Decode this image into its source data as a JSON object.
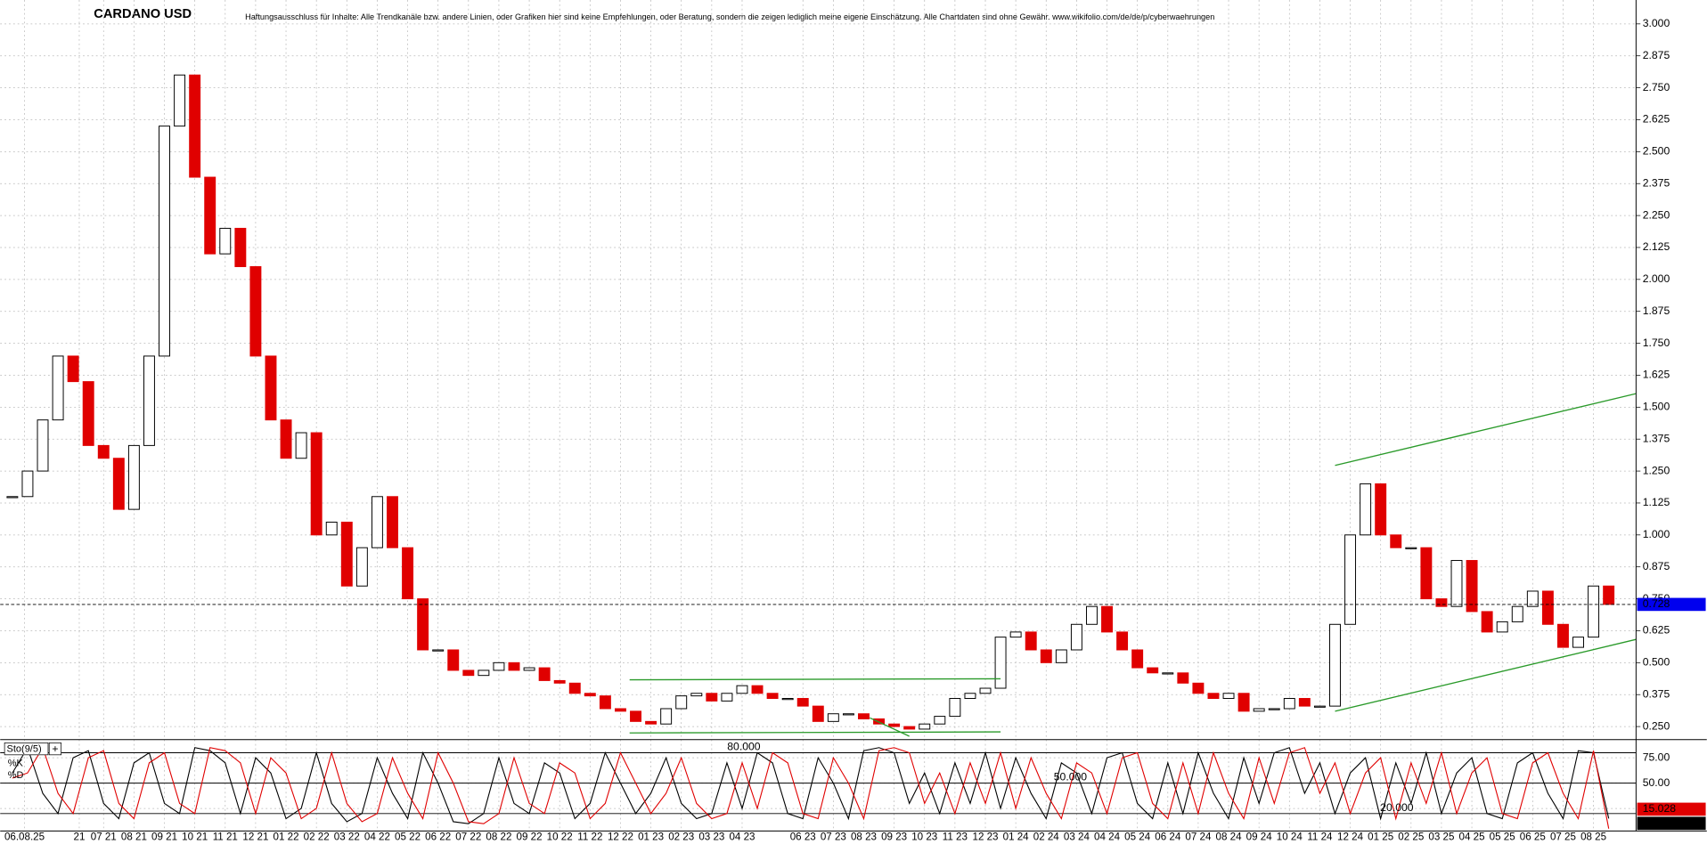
{
  "chart_data": [
    {
      "type": "candlestick",
      "title": "CARDANO USD",
      "subtitle": "Haftungsausschluss für Inhalte: Alle Trendkanäle bzw. andere Linien, oder Grafiken hier sind keine Empfehlungen, oder Beratung, sondern die zeigen lediglich meine eigene Einschätzung. Alle Chartdaten sind ohne Gewähr. www.wikifolio.com/de/de/p/cyberwaehrungen",
      "x": [
        -3,
        -2.5,
        -2,
        -1.5,
        -1,
        -0.5,
        0,
        0.5,
        1,
        1.5,
        2,
        2.5,
        3,
        3.5,
        4,
        4.5,
        5,
        5.5,
        6,
        6.5,
        7,
        7.5,
        8,
        8.5,
        9,
        9.5,
        10,
        10.5,
        11,
        11.5,
        12,
        12.5,
        13,
        13.5,
        14,
        14.5,
        15,
        15.5,
        16,
        16.5,
        17,
        17.5,
        18,
        18.5,
        19,
        19.5,
        20,
        20.5,
        21,
        21.5,
        22,
        22.5,
        23,
        23.5,
        24,
        24.5,
        25,
        25.5,
        26,
        26.5,
        27,
        27.5,
        28,
        28.5,
        29,
        29.5,
        30,
        30.5,
        31,
        31.5,
        32,
        32.5,
        33,
        33.5,
        34,
        34.5,
        35,
        35.5,
        36,
        36.5,
        37,
        37.5,
        38,
        38.5,
        39,
        39.5,
        40,
        40.5,
        41,
        41.5,
        42,
        42.5,
        43,
        43.5,
        44,
        44.5,
        45,
        45.5,
        46,
        46.5,
        47,
        47.5,
        48,
        48.5,
        49,
        49.5
      ],
      "values": [
        1.15,
        1.25,
        1.45,
        1.7,
        1.6,
        1.35,
        1.3,
        1.1,
        1.35,
        1.7,
        2.6,
        2.8,
        2.4,
        2.1,
        2.2,
        2.05,
        1.7,
        1.45,
        1.3,
        1.4,
        1.0,
        1.05,
        0.8,
        0.95,
        1.15,
        0.95,
        0.75,
        0.55,
        0.55,
        0.47,
        0.45,
        0.47,
        0.5,
        0.47,
        0.48,
        0.43,
        0.42,
        0.38,
        0.37,
        0.32,
        0.31,
        0.27,
        0.26,
        0.32,
        0.37,
        0.38,
        0.35,
        0.38,
        0.41,
        0.38,
        0.36,
        0.36,
        0.33,
        0.27,
        0.3,
        0.3,
        0.28,
        0.26,
        0.25,
        0.24,
        0.26,
        0.29,
        0.36,
        0.38,
        0.4,
        0.6,
        0.62,
        0.55,
        0.5,
        0.55,
        0.65,
        0.72,
        0.62,
        0.55,
        0.48,
        0.46,
        0.46,
        0.42,
        0.38,
        0.36,
        0.38,
        0.31,
        0.32,
        0.32,
        0.36,
        0.33,
        0.33,
        0.65,
        1.0,
        1.2,
        1.0,
        0.95,
        0.95,
        0.75,
        0.72,
        0.9,
        0.7,
        0.62,
        0.66,
        0.72,
        0.78,
        0.65,
        0.56,
        0.6,
        0.8,
        0.728
      ],
      "up_color": "#000000",
      "down_color": "#e00000",
      "xlim": [
        -3.4,
        50.4
      ],
      "xticks": [
        {
          "value": -2.6,
          "label": "06.08.25"
        },
        {
          "value": -0.8,
          "label": "21"
        },
        {
          "value": 0,
          "label": "07 21"
        },
        {
          "value": 1,
          "label": "08 21"
        },
        {
          "value": 2,
          "label": "09 21"
        },
        {
          "value": 3,
          "label": "10 21"
        },
        {
          "value": 4,
          "label": "11 21"
        },
        {
          "value": 5,
          "label": "12 21"
        },
        {
          "value": 6,
          "label": "01 22"
        },
        {
          "value": 7,
          "label": "02 22"
        },
        {
          "value": 8,
          "label": "03 22"
        },
        {
          "value": 9,
          "label": "04 22"
        },
        {
          "value": 10,
          "label": "05 22"
        },
        {
          "value": 11,
          "label": "06 22"
        },
        {
          "value": 12,
          "label": "07 22"
        },
        {
          "value": 13,
          "label": "08 22"
        },
        {
          "value": 14,
          "label": "09 22"
        },
        {
          "value": 15,
          "label": "10 22"
        },
        {
          "value": 16,
          "label": "11 22"
        },
        {
          "value": 17,
          "label": "12 22"
        },
        {
          "value": 18,
          "label": "01 23"
        },
        {
          "value": 19,
          "label": "02 23"
        },
        {
          "value": 20,
          "label": "03 23"
        },
        {
          "value": 21,
          "label": "04 23"
        },
        {
          "value": 23,
          "label": "06 23"
        },
        {
          "value": 24,
          "label": "07 23"
        },
        {
          "value": 25,
          "label": "08 23"
        },
        {
          "value": 26,
          "label": "09 23"
        },
        {
          "value": 27,
          "label": "10 23"
        },
        {
          "value": 28,
          "label": "11 23"
        },
        {
          "value": 29,
          "label": "12 23"
        },
        {
          "value": 30,
          "label": "01 24"
        },
        {
          "value": 31,
          "label": "02 24"
        },
        {
          "value": 32,
          "label": "03 24"
        },
        {
          "value": 33,
          "label": "04 24"
        },
        {
          "value": 34,
          "label": "05 24"
        },
        {
          "value": 35,
          "label": "06 24"
        },
        {
          "value": 36,
          "label": "07 24"
        },
        {
          "value": 37,
          "label": "08 24"
        },
        {
          "value": 38,
          "label": "09 24"
        },
        {
          "value": 39,
          "label": "10 24"
        },
        {
          "value": 40,
          "label": "11 24"
        },
        {
          "value": 41,
          "label": "12 24"
        },
        {
          "value": 42,
          "label": "01 25"
        },
        {
          "value": 43,
          "label": "02 25"
        },
        {
          "value": 44,
          "label": "03 25"
        },
        {
          "value": 45,
          "label": "04 25"
        },
        {
          "value": 46,
          "label": "05 25"
        },
        {
          "value": 47,
          "label": "06 25"
        },
        {
          "value": 48,
          "label": "07 25"
        },
        {
          "value": 49,
          "label": "08 25"
        }
      ],
      "ylim": [
        0.216,
        3.085
      ],
      "yticks": [
        {
          "value": 0.25,
          "label": "0.250"
        },
        {
          "value": 0.375,
          "label": "0.375"
        },
        {
          "value": 0.5,
          "label": "0.500"
        },
        {
          "value": 0.625,
          "label": "0.625"
        },
        {
          "value": 0.75,
          "label": "0.750"
        },
        {
          "value": 0.875,
          "label": "0.875"
        },
        {
          "value": 1.0,
          "label": "1.000"
        },
        {
          "value": 1.125,
          "label": "1.125"
        },
        {
          "value": 1.25,
          "label": "1.250"
        },
        {
          "value": 1.375,
          "label": "1.375"
        },
        {
          "value": 1.5,
          "label": "1.500"
        },
        {
          "value": 1.625,
          "label": "1.625"
        },
        {
          "value": 1.75,
          "label": "1.750"
        },
        {
          "value": 1.875,
          "label": "1.875"
        },
        {
          "value": 2.0,
          "label": "2.000"
        },
        {
          "value": 2.125,
          "label": "2.125"
        },
        {
          "value": 2.25,
          "label": "2.250"
        },
        {
          "value": 2.375,
          "label": "2.375"
        },
        {
          "value": 2.5,
          "label": "2.500"
        },
        {
          "value": 2.625,
          "label": "2.625"
        },
        {
          "value": 2.75,
          "label": "2.750"
        },
        {
          "value": 2.875,
          "label": "2.875"
        },
        {
          "value": 3.0,
          "label": "3.000"
        }
      ],
      "grid": true,
      "last_price_color": "#0000ee",
      "trendline_color": "#2a9a2a",
      "trendlines": [
        {
          "x": [
            40.5,
            50.4
          ],
          "y": [
            1.272,
            1.553
          ]
        },
        {
          "x": [
            40.5,
            50.4
          ],
          "y": [
            0.31,
            0.591
          ]
        },
        {
          "x": [
            17.3,
            29.5
          ],
          "y": [
            0.433,
            0.437
          ]
        },
        {
          "x": [
            17.3,
            29.5
          ],
          "y": [
            0.225,
            0.229
          ]
        },
        {
          "x": [
            25.2,
            26.5
          ],
          "y": [
            0.284,
            0.212
          ]
        }
      ]
    },
    {
      "type": "line",
      "title": "Sto(9/5)",
      "x": [
        -3,
        -2.5,
        -2,
        -1.5,
        -1,
        -0.5,
        0,
        0.5,
        1,
        1.5,
        2,
        2.5,
        3,
        3.5,
        4,
        4.5,
        5,
        5.5,
        6,
        6.5,
        7,
        7.5,
        8,
        8.5,
        9,
        9.5,
        10,
        10.5,
        11,
        11.5,
        12,
        12.5,
        13,
        13.5,
        14,
        14.5,
        15,
        15.5,
        16,
        16.5,
        17,
        17.5,
        18,
        18.5,
        19,
        19.5,
        20,
        20.5,
        21,
        21.5,
        22,
        22.5,
        23,
        23.5,
        24,
        24.5,
        25,
        25.5,
        26,
        26.5,
        27,
        27.5,
        28,
        28.5,
        29,
        29.5,
        30,
        30.5,
        31,
        31.5,
        32,
        32.5,
        33,
        33.5,
        34,
        34.5,
        35,
        35.5,
        36,
        36.5,
        37,
        37.5,
        38,
        38.5,
        39,
        39.5,
        40,
        40.5,
        41,
        41.5,
        42,
        42.5,
        43,
        43.5,
        44,
        44.5,
        45,
        45.5,
        46,
        46.5,
        47,
        47.5,
        48,
        48.5,
        49,
        49.5
      ],
      "series": [
        {
          "name": "%K",
          "color": "#000000",
          "values": [
            60,
            85,
            40,
            20,
            75,
            82,
            30,
            15,
            70,
            80,
            30,
            20,
            85,
            82,
            70,
            20,
            75,
            60,
            15,
            25,
            80,
            30,
            12,
            20,
            75,
            40,
            15,
            80,
            50,
            12,
            10,
            20,
            75,
            30,
            20,
            70,
            60,
            15,
            30,
            80,
            50,
            20,
            40,
            75,
            30,
            15,
            20,
            70,
            25,
            80,
            70,
            20,
            15,
            75,
            50,
            15,
            82,
            85,
            80,
            30,
            60,
            20,
            70,
            30,
            80,
            25,
            75,
            40,
            15,
            70,
            60,
            20,
            75,
            80,
            30,
            15,
            70,
            20,
            80,
            40,
            15,
            75,
            30,
            80,
            85,
            40,
            70,
            20,
            60,
            75,
            15,
            70,
            30,
            80,
            20,
            60,
            75,
            20,
            15,
            70,
            80,
            40,
            15,
            82,
            80,
            15.028
          ]
        },
        {
          "name": "%D",
          "color": "#e00000",
          "values": [
            55,
            60,
            85,
            40,
            20,
            75,
            82,
            30,
            15,
            70,
            80,
            30,
            20,
            85,
            82,
            70,
            20,
            75,
            60,
            15,
            25,
            80,
            30,
            12,
            20,
            75,
            40,
            15,
            80,
            50,
            12,
            10,
            20,
            75,
            30,
            20,
            70,
            60,
            15,
            30,
            80,
            50,
            20,
            40,
            75,
            30,
            15,
            20,
            70,
            25,
            80,
            70,
            20,
            15,
            75,
            50,
            15,
            82,
            85,
            80,
            30,
            60,
            20,
            70,
            30,
            80,
            25,
            75,
            40,
            15,
            70,
            60,
            20,
            75,
            80,
            30,
            15,
            70,
            20,
            80,
            40,
            15,
            75,
            30,
            80,
            85,
            40,
            70,
            20,
            60,
            75,
            15,
            70,
            30,
            80,
            20,
            60,
            75,
            20,
            15,
            70,
            80,
            40,
            15,
            82,
            5.131
          ]
        }
      ],
      "ylim": [
        5,
        86.5
      ],
      "yticks": [
        {
          "value": 25,
          "label": "25.00"
        },
        {
          "value": 50,
          "label": "50.00"
        },
        {
          "value": 75,
          "label": "75.00"
        }
      ],
      "levels": [
        {
          "value": 80,
          "label": "80.000"
        },
        {
          "value": 50,
          "label": "50.000"
        },
        {
          "value": 20,
          "label": "20.000"
        }
      ]
    }
  ]
}
